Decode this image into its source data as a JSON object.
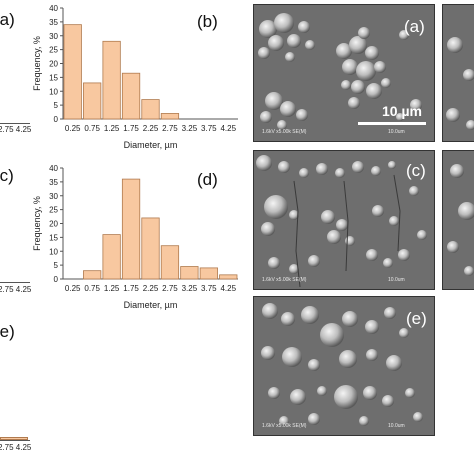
{
  "chart_data": [
    {
      "type": "bar",
      "panel": "(b)",
      "ylabel": "Frequency, %",
      "xlabel": "Diameter, µm",
      "ylim": [
        0,
        40
      ],
      "yticks": [
        "0",
        "5",
        "10",
        "15",
        "20",
        "25",
        "30",
        "35",
        "40"
      ],
      "categories": [
        "0.25",
        "0.75",
        "1.25",
        "1.75",
        "2.25",
        "2.75",
        "3.25",
        "3.75",
        "4.25"
      ],
      "values": [
        34,
        13,
        28,
        16.5,
        7,
        2,
        0,
        0,
        0
      ],
      "bar_color": "#f8c8a0",
      "bar_edge": "#b07a4e",
      "grid": false
    },
    {
      "type": "bar",
      "panel": "(d)",
      "ylabel": "Frequency, %",
      "xlabel": "Diameter, µm",
      "ylim": [
        0,
        40
      ],
      "yticks": [
        "0",
        "5",
        "10",
        "15",
        "20",
        "25",
        "30",
        "35",
        "40"
      ],
      "categories": [
        "0.25",
        "0.75",
        "1.25",
        "1.75",
        "2.25",
        "2.75",
        "3.25",
        "3.75",
        "4.25"
      ],
      "values": [
        0,
        3,
        16,
        36,
        22,
        12,
        4.5,
        4,
        1.5
      ],
      "bar_color": "#f8c8a0",
      "bar_edge": "#b07a4e",
      "grid": false
    }
  ],
  "clipped": {
    "a_label": "(a)",
    "a_ticks": "2.75 4.25",
    "c_label": "(c)",
    "c_ticks": "2.75 4.25",
    "e_label": "(e)",
    "e_ticks": "2.75 4.25"
  },
  "sem": {
    "a_label": "(a)",
    "c_label": "(c)",
    "e_label": "(e)",
    "scale_text": "10 µm",
    "info_a": "1.6kV x5.00k SE(M)",
    "info_c": "1.6kV x5.00k SE(M)",
    "info_e": "1.6kV x5.00k SE(M)",
    "scale_a": "10.0um",
    "scale_c": "10.0um",
    "scale_e": "10.0um"
  }
}
